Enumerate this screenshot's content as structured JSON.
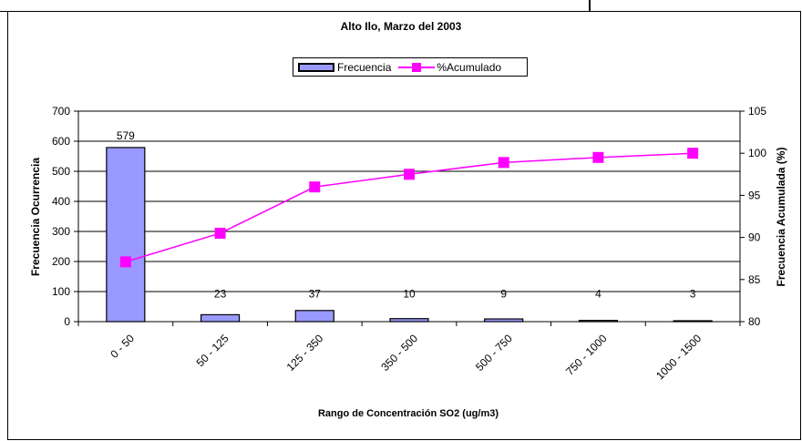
{
  "chart_data": {
    "type": "bar",
    "title": "Alto Ilo, Marzo del 2003",
    "xlabel": "Rango de Concentración SO2 (ug/m3)",
    "ylabel": "Frecuencia Ocurrencia",
    "y2label": "Frecuencia Acumulada (%)",
    "categories": [
      "0 - 50",
      "50 - 125",
      "125 - 350",
      "350 - 500",
      "500 - 750",
      "750 - 1000",
      "1000 - 1500"
    ],
    "ylim": [
      0,
      700
    ],
    "yticks": [
      "0",
      "100",
      "200",
      "300",
      "400",
      "500",
      "600",
      "700"
    ],
    "y2lim": [
      80,
      105
    ],
    "y2ticks": [
      "80",
      "85",
      "90",
      "95",
      "100",
      "105"
    ],
    "grid": true,
    "legend_position": "top-center",
    "series": [
      {
        "name": "Frecuencia",
        "type": "bar",
        "axis": "left",
        "color": "#9999ff",
        "values": [
          579,
          23,
          37,
          10,
          9,
          4,
          3
        ],
        "labels": [
          "579",
          "23",
          "37",
          "10",
          "9",
          "4",
          "3"
        ]
      },
      {
        "name": "%Acumulado",
        "type": "line",
        "axis": "right",
        "color": "#ff00ff",
        "values": [
          87.1,
          90.5,
          96.0,
          97.5,
          98.9,
          99.5,
          100.0
        ]
      }
    ]
  }
}
